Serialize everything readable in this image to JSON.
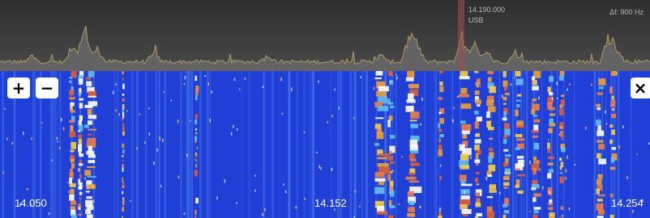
{
  "spectrum": {
    "marker_frequency": "14.190.000",
    "mode": "USB",
    "bandwidth": "Δf: 900 Hz"
  },
  "controls": {
    "zoom_in": "+",
    "zoom_out": "−",
    "close": "×"
  },
  "waterfall": {
    "frequency_labels": [
      "14.050",
      "14.152",
      "14.254"
    ]
  }
}
